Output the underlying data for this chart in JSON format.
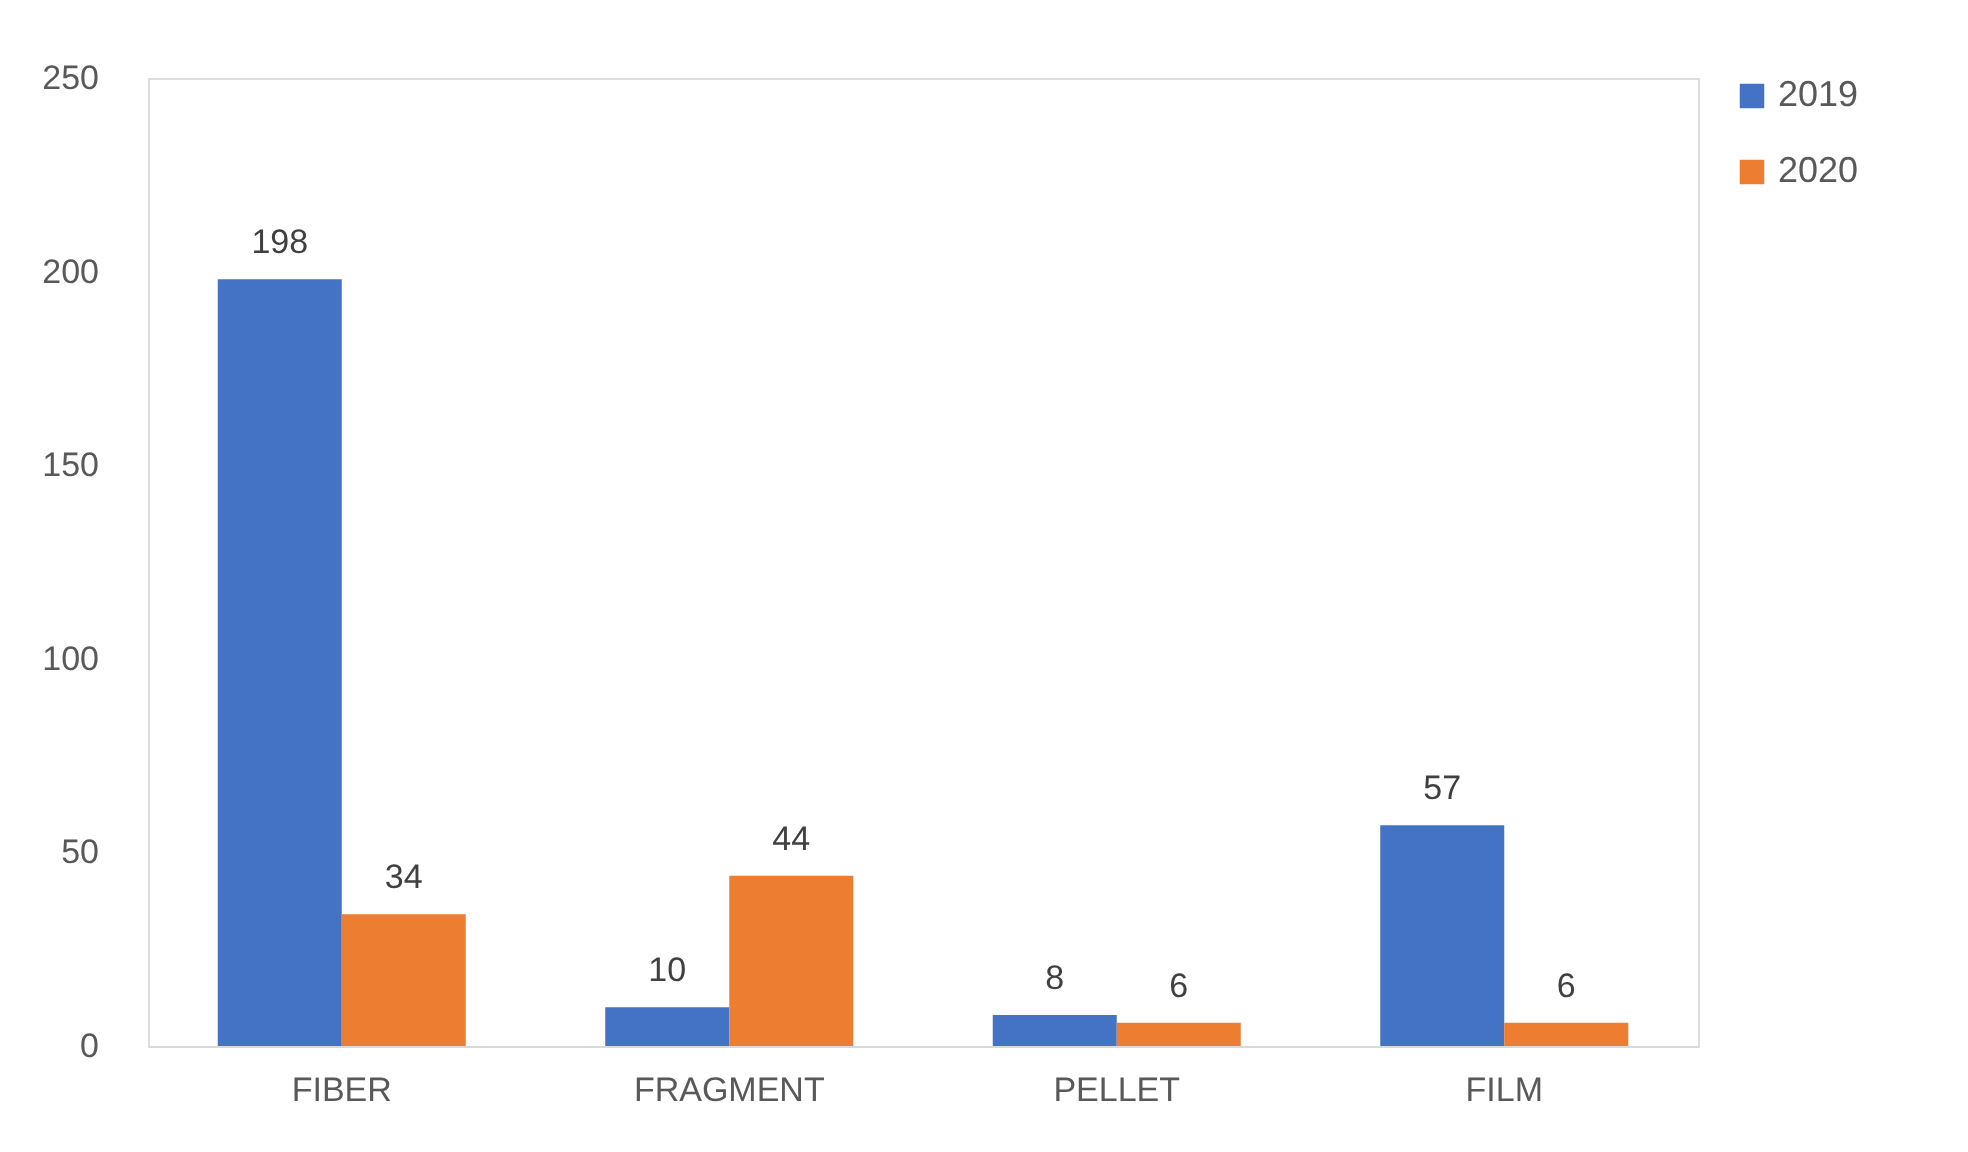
{
  "chart_data": {
    "type": "bar",
    "categories": [
      "FIBER",
      "FRAGMENT",
      "PELLET",
      "FILM"
    ],
    "series": [
      {
        "name": "2019",
        "color": "#4472c4",
        "values": [
          198,
          10,
          8,
          57
        ]
      },
      {
        "name": "2020",
        "color": "#ed7d31",
        "values": [
          34,
          44,
          6,
          6
        ]
      }
    ],
    "ylim": [
      0,
      250
    ],
    "yticks": [
      0,
      50,
      100,
      150,
      200,
      250
    ],
    "grid": false,
    "legend": "right",
    "data_labels": true
  }
}
